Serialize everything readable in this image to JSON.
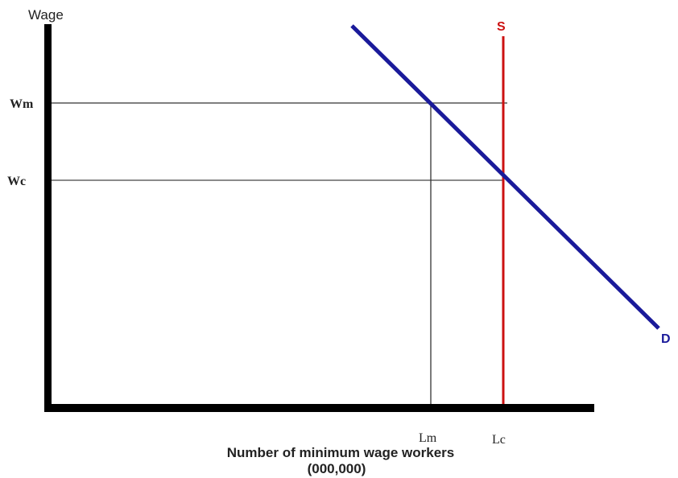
{
  "y_axis_label": "Wage",
  "x_axis_label_line1": "Number of minimum wage workers",
  "x_axis_label_line2": "(000,000)",
  "wage_labels": {
    "wm": "Wm",
    "wc": "Wc"
  },
  "labor_labels": {
    "lm": "Lm",
    "lc": "Lc"
  },
  "supply_label": "S",
  "demand_label": "D",
  "colors": {
    "supply": "#cc1111",
    "demand": "#1a1a9a",
    "axes": "#000000",
    "guides": "#333333"
  }
}
